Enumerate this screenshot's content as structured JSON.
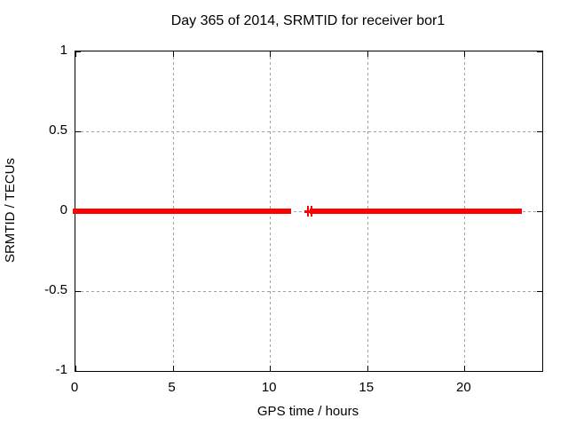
{
  "chart_data": {
    "type": "line",
    "title": "Day 365 of 2014, SRMTID for receiver bor1",
    "xlabel": "GPS time / hours",
    "ylabel": "SRMTID / TECUs",
    "xlim": [
      0,
      24
    ],
    "ylim": [
      -1,
      1
    ],
    "x_ticks": [
      {
        "value": 0,
        "label": "0"
      },
      {
        "value": 5,
        "label": "5"
      },
      {
        "value": 10,
        "label": "10"
      },
      {
        "value": 15,
        "label": "15"
      },
      {
        "value": 20,
        "label": "20"
      }
    ],
    "y_ticks": [
      {
        "value": -1,
        "label": "-1"
      },
      {
        "value": -0.5,
        "label": "-0.5"
      },
      {
        "value": 0,
        "label": "0"
      },
      {
        "value": 0.5,
        "label": "0.5"
      },
      {
        "value": 1,
        "label": "1"
      }
    ],
    "x_grid_at": [
      5,
      10,
      15,
      20
    ],
    "y_grid_at": [
      -0.5,
      0,
      0.5
    ],
    "grid": true,
    "legend_position": "none",
    "series": [
      {
        "name": "SRMTID",
        "color": "#ff0000",
        "style": "dense point markers forming thick horizontal bar",
        "y_value": 0,
        "segments_hours": [
          [
            0,
            10.95
          ],
          [
            12.2,
            22.81
          ]
        ],
        "isolated_points_hours": [
          11.95,
          12.14
        ]
      }
    ]
  },
  "colors": {
    "background": "#ffffff",
    "axis": "#000000",
    "grid": "#a0a0a0",
    "series": "#ff0000",
    "text": "#000000"
  }
}
